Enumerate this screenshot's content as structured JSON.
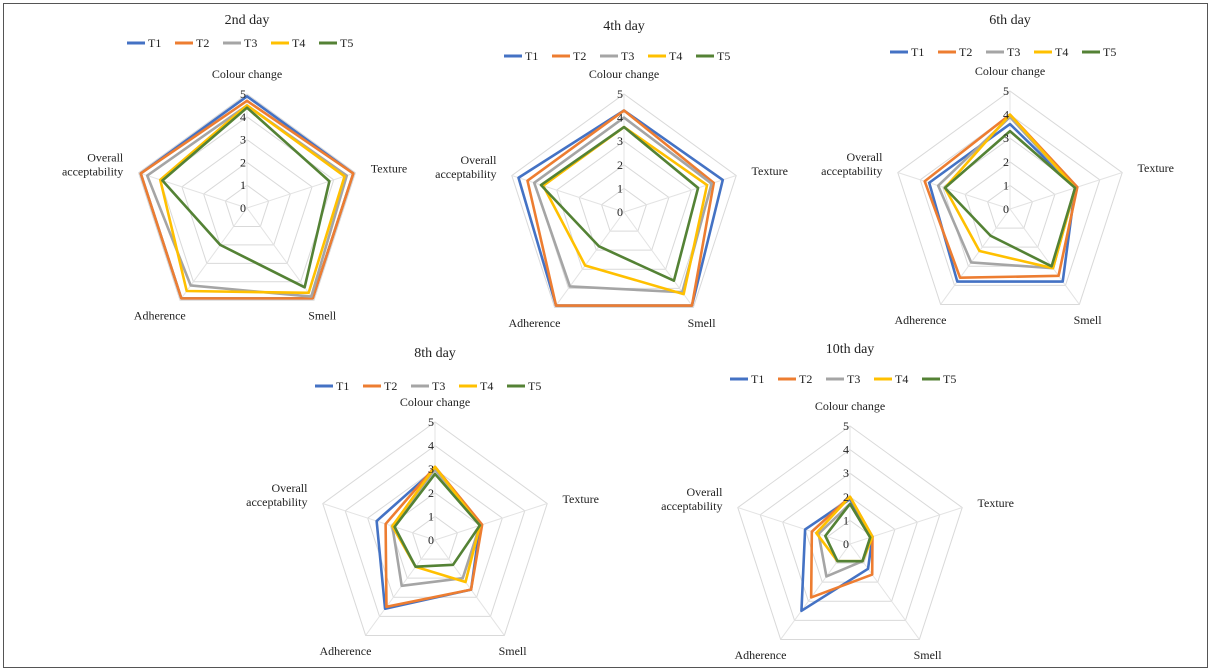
{
  "series_colors": [
    "#4472C4",
    "#ED7D31",
    "#A5A5A5",
    "#FFC000",
    "#548235"
  ],
  "chart_data": [
    {
      "type": "radar",
      "title": "2nd day",
      "axes": [
        "Colour change",
        "Texture",
        "Smell",
        "Adherence",
        "Overall acceptability"
      ],
      "ticks": [
        "0",
        "1",
        "2",
        "3",
        "4",
        "5"
      ],
      "rlim": [
        0,
        5
      ],
      "grid": true,
      "legend": "top",
      "series": [
        {
          "name": "T1",
          "values": [
            4.9,
            4.9,
            4.9,
            4.9,
            4.9
          ]
        },
        {
          "name": "T2",
          "values": [
            4.7,
            4.9,
            4.9,
            4.9,
            4.9
          ]
        },
        {
          "name": "T3",
          "values": [
            4.5,
            4.6,
            4.8,
            4.2,
            4.6
          ]
        },
        {
          "name": "T4",
          "values": [
            4.5,
            4.5,
            4.6,
            4.5,
            4.0
          ]
        },
        {
          "name": "T5",
          "values": [
            4.4,
            3.8,
            4.3,
            2.0,
            3.9
          ]
        }
      ]
    },
    {
      "type": "radar",
      "title": "4th day",
      "axes": [
        "Colour change",
        "Texture",
        "Smell",
        "Adherence",
        "Overall acceptability"
      ],
      "ticks": [
        "0",
        "1",
        "2",
        "3",
        "4",
        "5"
      ],
      "rlim": [
        0,
        5
      ],
      "grid": true,
      "legend": "top",
      "series": [
        {
          "name": "T1",
          "values": [
            4.3,
            4.4,
            4.9,
            4.9,
            4.7
          ]
        },
        {
          "name": "T2",
          "values": [
            4.3,
            4.0,
            4.9,
            4.9,
            4.3
          ]
        },
        {
          "name": "T3",
          "values": [
            4.0,
            3.9,
            4.2,
            3.9,
            4.0
          ]
        },
        {
          "name": "T4",
          "values": [
            3.6,
            3.7,
            4.3,
            2.8,
            3.6
          ]
        },
        {
          "name": "T5",
          "values": [
            3.6,
            3.3,
            3.6,
            1.8,
            3.7
          ]
        }
      ]
    },
    {
      "type": "radar",
      "title": "6th day",
      "axes": [
        "Colour change",
        "Texture",
        "Smell",
        "Adherence",
        "Overall acceptability"
      ],
      "ticks": [
        "0",
        "1",
        "2",
        "3",
        "4",
        "5"
      ],
      "rlim": [
        0,
        5
      ],
      "grid": true,
      "legend": "top",
      "series": [
        {
          "name": "T1",
          "values": [
            3.6,
            2.9,
            3.8,
            3.8,
            3.6
          ]
        },
        {
          "name": "T2",
          "values": [
            4.0,
            3.0,
            3.5,
            3.6,
            3.8
          ]
        },
        {
          "name": "T3",
          "values": [
            3.9,
            2.9,
            3.1,
            2.8,
            3.2
          ]
        },
        {
          "name": "T4",
          "values": [
            4.0,
            2.9,
            3.1,
            2.2,
            2.9
          ]
        },
        {
          "name": "T5",
          "values": [
            3.3,
            2.9,
            3.0,
            1.4,
            2.9
          ]
        }
      ]
    },
    {
      "type": "radar",
      "title": "8th day",
      "axes": [
        "Colour change",
        "Texture",
        "Smell",
        "Adherence",
        "Overall acceptability"
      ],
      "ticks": [
        "0",
        "1",
        "2",
        "3",
        "4",
        "5"
      ],
      "rlim": [
        0,
        5
      ],
      "grid": true,
      "legend": "top",
      "series": [
        {
          "name": "T1",
          "values": [
            3.0,
            2.0,
            2.6,
            3.6,
            2.6
          ]
        },
        {
          "name": "T2",
          "values": [
            3.1,
            2.1,
            2.6,
            3.5,
            2.2
          ]
        },
        {
          "name": "T3",
          "values": [
            3.0,
            2.0,
            2.0,
            2.4,
            1.9
          ]
        },
        {
          "name": "T4",
          "values": [
            3.1,
            2.0,
            2.2,
            1.4,
            1.9
          ]
        },
        {
          "name": "T5",
          "values": [
            2.8,
            2.0,
            1.3,
            1.4,
            1.8
          ]
        }
      ]
    },
    {
      "type": "radar",
      "title": "10th day",
      "axes": [
        "Colour change",
        "Texture",
        "Smell",
        "Adherence",
        "Overall acceptability"
      ],
      "ticks": [
        "0",
        "1",
        "2",
        "3",
        "4",
        "5"
      ],
      "rlim": [
        0,
        5
      ],
      "grid": true,
      "legend": "top",
      "series": [
        {
          "name": "T1",
          "values": [
            1.9,
            1.0,
            1.3,
            3.5,
            2.0
          ]
        },
        {
          "name": "T2",
          "values": [
            2.0,
            1.0,
            1.6,
            2.8,
            1.7
          ]
        },
        {
          "name": "T3",
          "values": [
            1.7,
            0.9,
            0.9,
            1.7,
            1.4
          ]
        },
        {
          "name": "T4",
          "values": [
            2.0,
            1.0,
            0.9,
            0.9,
            1.5
          ]
        },
        {
          "name": "T5",
          "values": [
            1.7,
            0.9,
            0.9,
            0.9,
            1.1
          ]
        }
      ]
    }
  ]
}
